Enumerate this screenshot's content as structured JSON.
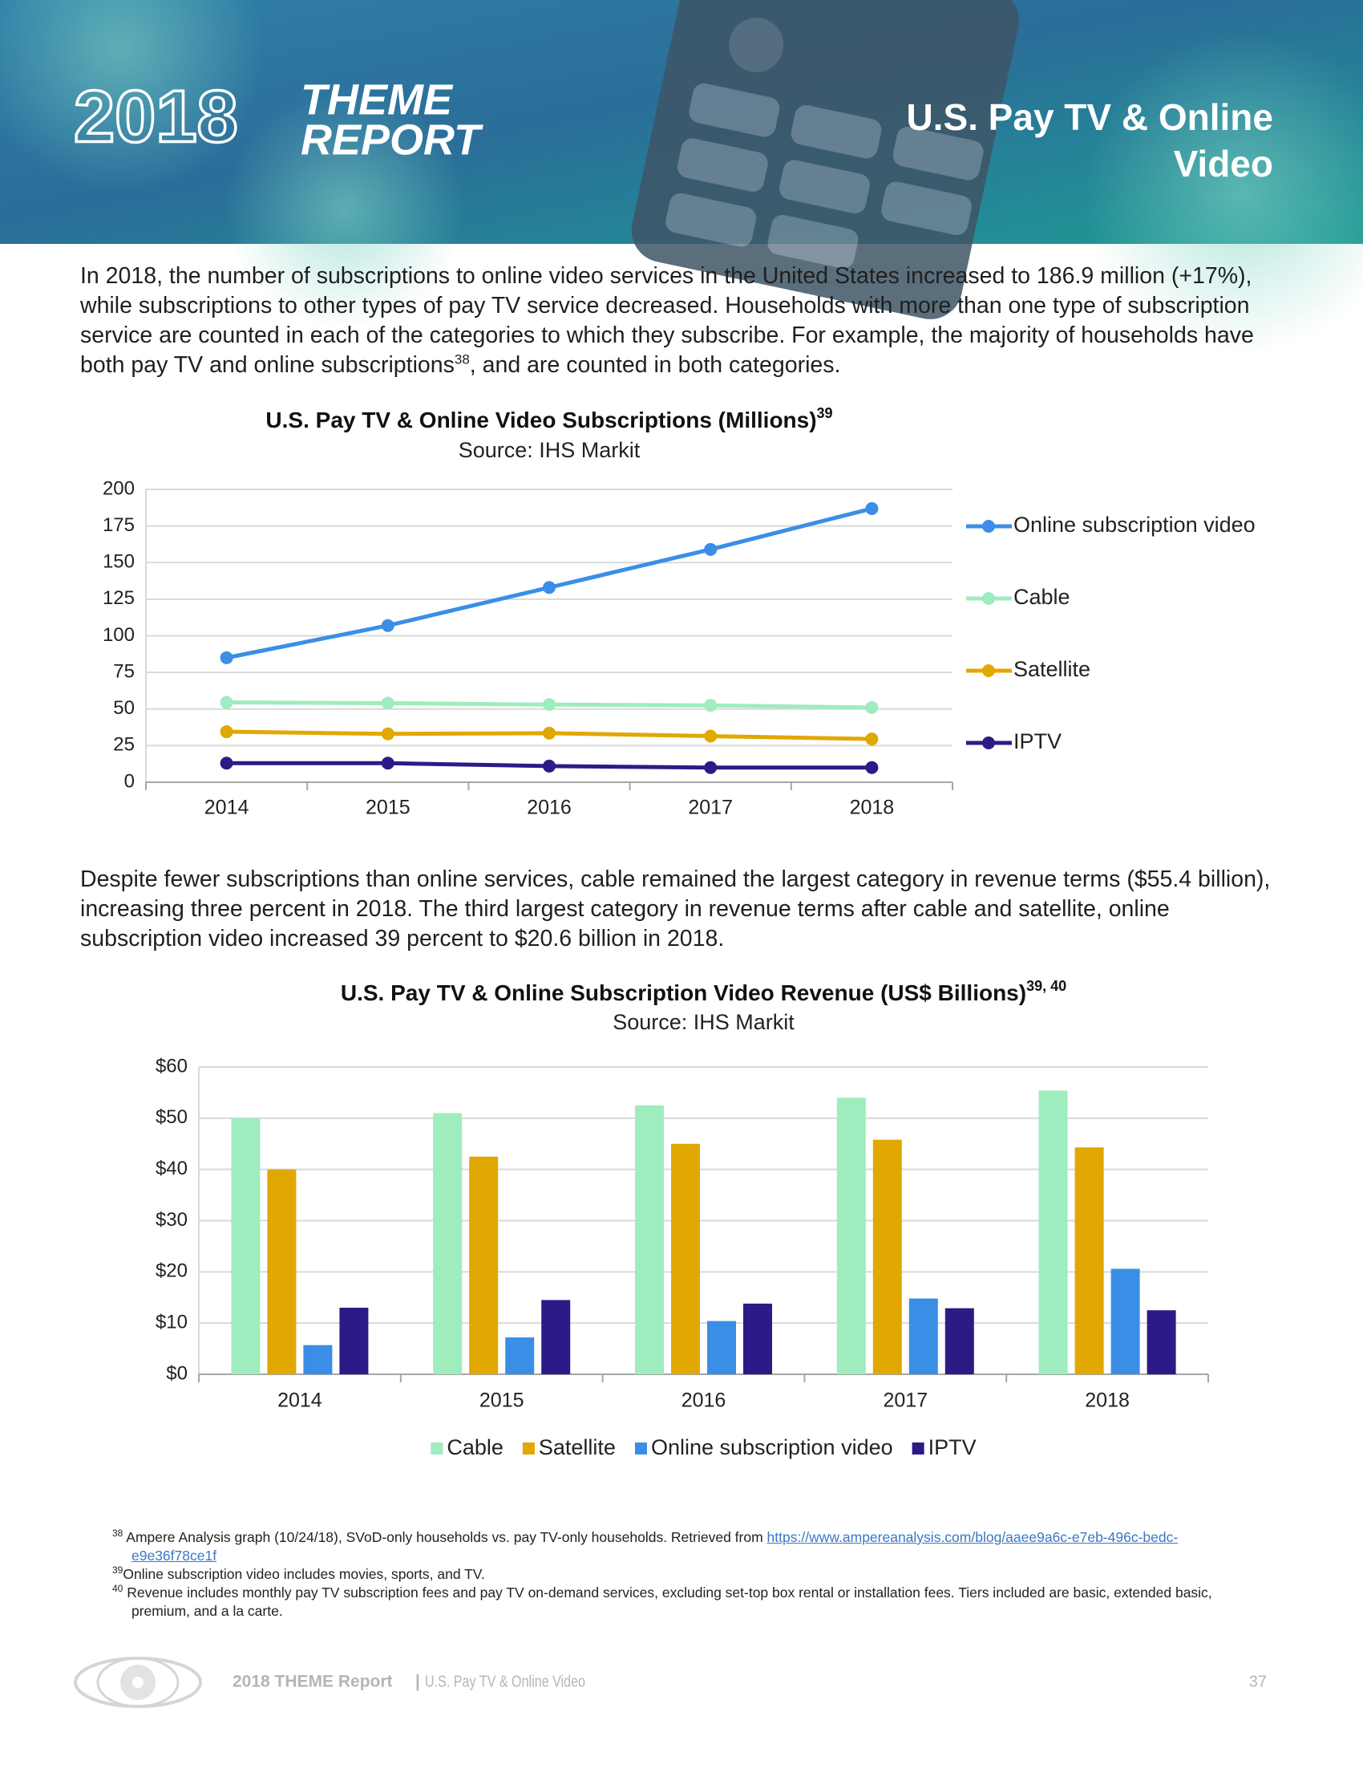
{
  "header": {
    "logo_year": "2018",
    "logo_word1": "THEME",
    "logo_word2": "REPORT",
    "title_line1": "U.S. Pay TV & Online",
    "title_line2": "Video"
  },
  "paragraphs": [
    {
      "text_before": "In 2018, the number of subscriptions to online video services in the United States increased to 186.9 million (+17%), while subscriptions to other types of pay TV service decreased. Households with more than one type of subscription service are counted in each of the categories to which they subscribe. For example, the majority of households have both pay TV and online subscriptions",
      "ref": "38",
      "text_after": ", and are counted in both categories."
    },
    {
      "text_before": "Despite fewer subscriptions than online services, cable remained the largest category in revenue terms ($55.4 billion), increasing three percent in 2018. The third largest category in revenue terms after cable and satellite, online subscription video increased 39 percent to $20.6 billion in 2018."
    }
  ],
  "chart_data": [
    {
      "type": "line",
      "title": "U.S. Pay TV & Online Video Subscriptions (Millions)",
      "title_note": "39",
      "subtitle": "Source: IHS Markit",
      "categories": [
        "2014",
        "2015",
        "2016",
        "2017",
        "2018"
      ],
      "series": [
        {
          "name": "Online subscription video",
          "color": "#3a8ee6",
          "values": [
            85,
            107,
            133,
            159,
            186.9
          ]
        },
        {
          "name": "Cable",
          "color": "#9fecbf",
          "values": [
            54.5,
            54,
            53,
            52.5,
            51
          ]
        },
        {
          "name": "Satellite",
          "color": "#e0a800",
          "values": [
            34.5,
            33,
            33.5,
            31.5,
            29.5
          ]
        },
        {
          "name": "IPTV",
          "color": "#2e1a87",
          "values": [
            13,
            13,
            11,
            10,
            10
          ]
        }
      ],
      "ylim": [
        0,
        200
      ],
      "yticks": [
        0,
        25,
        50,
        75,
        100,
        125,
        150,
        175,
        200
      ],
      "grid": true,
      "legend": "right"
    },
    {
      "type": "bar",
      "title": "U.S. Pay TV & Online Subscription Video Revenue (US$ Billions)",
      "title_note": "39, 40",
      "subtitle": "Source: IHS Markit",
      "categories": [
        "2014",
        "2015",
        "2016",
        "2017",
        "2018"
      ],
      "series": [
        {
          "name": "Cable",
          "color": "#9fecbf",
          "values": [
            50,
            51,
            52.5,
            54,
            55.4
          ]
        },
        {
          "name": "Satellite",
          "color": "#e0a800",
          "values": [
            40,
            42.5,
            45,
            45.8,
            44.3
          ]
        },
        {
          "name": "Online subscription video",
          "color": "#3a8ee6",
          "values": [
            5.7,
            7.2,
            10.4,
            14.8,
            20.6
          ]
        },
        {
          "name": "IPTV",
          "color": "#2e1a87",
          "values": [
            13,
            14.5,
            13.8,
            12.9,
            12.5
          ]
        }
      ],
      "ylim": [
        0,
        60
      ],
      "yticks": [
        {
          "value": 0,
          "label": "$0"
        },
        {
          "value": 10,
          "label": "$10"
        },
        {
          "value": 20,
          "label": "$20"
        },
        {
          "value": 30,
          "label": "$30"
        },
        {
          "value": 40,
          "label": "$40"
        },
        {
          "value": 50,
          "label": "$50"
        },
        {
          "value": 60,
          "label": "$60"
        }
      ],
      "grid": true,
      "legend": "bottom"
    }
  ],
  "footnotes": [
    {
      "number": "38",
      "text": "Ampere Analysis graph (10/24/18), SVoD-only households vs. pay TV-only households. Retrieved from ",
      "link": "https://www.ampereanalysis.com/blog/aaee9a6c-e7eb-496c-bedc-e9e36f78ce1f"
    },
    {
      "number": "39",
      "text": "Online subscription video includes movies, sports, and TV."
    },
    {
      "number": "40",
      "text": "Revenue includes monthly pay TV subscription fees and pay TV on-demand services, excluding set-top box rental or installation fees. Tiers included are basic, extended basic, premium, and a la carte."
    }
  ],
  "footer": {
    "report": "2018 THEME Report",
    "separator": "|",
    "section": "U.S. Pay TV & Online Video",
    "page": "37"
  }
}
